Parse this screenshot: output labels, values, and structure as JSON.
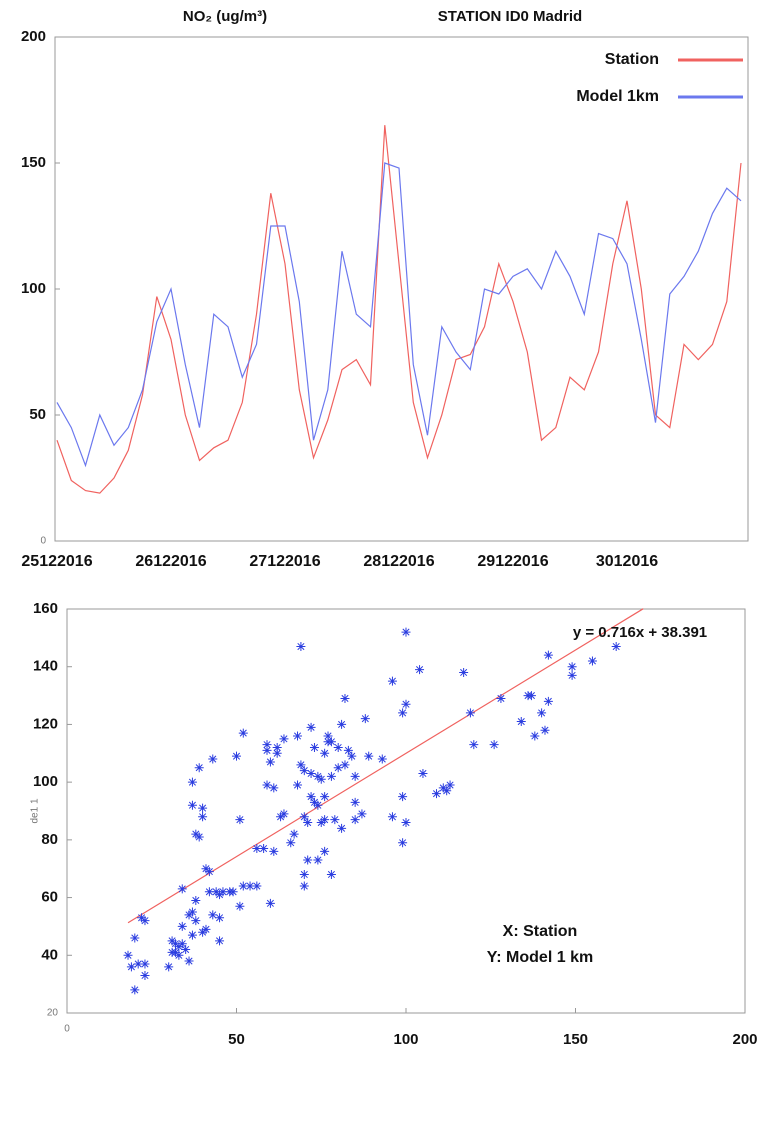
{
  "chart_data": [
    {
      "type": "line",
      "title": "NO₂  (ug/m³)",
      "subtitle": "STATION ID0 Madrid",
      "categories": [
        "25122016",
        null,
        null,
        null,
        null,
        null,
        null,
        null,
        "26122016",
        null,
        null,
        null,
        null,
        null,
        null,
        null,
        "27122016",
        null,
        null,
        null,
        null,
        null,
        null,
        null,
        "28122016",
        null,
        null,
        null,
        null,
        null,
        null,
        null,
        "29122016",
        null,
        null,
        null,
        null,
        null,
        null,
        null,
        "3012016",
        null,
        null,
        null,
        null,
        null,
        null,
        null,
        null
      ],
      "series": [
        {
          "name": "Station",
          "color": "#f0625f",
          "values": [
            40,
            24,
            20,
            19,
            25,
            36,
            58,
            97,
            80,
            50,
            32,
            37,
            40,
            55,
            90,
            138,
            110,
            60,
            33,
            48,
            68,
            72,
            62,
            165,
            110,
            55,
            33,
            50,
            72,
            74,
            85,
            110,
            95,
            75,
            40,
            45,
            65,
            60,
            75,
            110,
            135,
            100,
            50,
            45,
            78,
            72,
            78,
            95,
            150
          ]
        },
        {
          "name": "Model 1km",
          "color": "#6b78ee",
          "values": [
            55,
            45,
            30,
            50,
            38,
            45,
            60,
            87,
            100,
            70,
            45,
            90,
            85,
            65,
            78,
            125,
            125,
            95,
            40,
            60,
            115,
            90,
            85,
            150,
            148,
            70,
            42,
            85,
            75,
            68,
            100,
            98,
            105,
            108,
            100,
            115,
            105,
            90,
            122,
            120,
            110,
            80,
            47,
            98,
            105,
            115,
            130,
            140,
            135
          ]
        }
      ],
      "ylim": [
        0,
        200
      ],
      "yticks": [
        0,
        50,
        100,
        150,
        200
      ],
      "legend": "upper right"
    },
    {
      "type": "scatter",
      "color": "#2b3de0",
      "marker": "*",
      "x": [
        18,
        19,
        20,
        20,
        21,
        22,
        23,
        23,
        23,
        30,
        31,
        31,
        32,
        32,
        33,
        33,
        34,
        34,
        34,
        35,
        36,
        36,
        37,
        37,
        38,
        38,
        37,
        37,
        38,
        39,
        39,
        40,
        40,
        40,
        41,
        41,
        42,
        42,
        43,
        43,
        44,
        45,
        45,
        45,
        46,
        48,
        49,
        50,
        51,
        51,
        52,
        52,
        54,
        56,
        56,
        58,
        59,
        59,
        59,
        60,
        60,
        61,
        61,
        62,
        62,
        63,
        64,
        64,
        66,
        67,
        68,
        68,
        69,
        69,
        70,
        70,
        70,
        70,
        71,
        71,
        72,
        72,
        72,
        73,
        73,
        74,
        74,
        74,
        75,
        75,
        76,
        76,
        76,
        76,
        77,
        77,
        78,
        78,
        78,
        79,
        80,
        80,
        81,
        81,
        82,
        82,
        83,
        84,
        85,
        85,
        85,
        87,
        88,
        89,
        93,
        96,
        96,
        99,
        99,
        99,
        100,
        100,
        100,
        104,
        105,
        109,
        111,
        112,
        113,
        117,
        119,
        120,
        126,
        128,
        134,
        136,
        137,
        138,
        140,
        141,
        142,
        142,
        149,
        149,
        155,
        162
      ],
      "values": [
        40,
        36,
        46,
        28,
        37,
        53,
        52,
        33,
        37,
        36,
        41,
        45,
        44,
        41,
        40,
        43,
        63,
        44,
        50,
        42,
        38,
        54,
        47,
        55,
        59,
        52,
        92,
        100,
        82,
        81,
        105,
        91,
        88,
        48,
        70,
        49,
        62,
        69,
        54,
        108,
        62,
        61,
        53,
        45,
        62,
        62,
        62,
        109,
        87,
        57,
        117,
        64,
        64,
        64,
        77,
        77,
        113,
        111,
        99,
        58,
        107,
        98,
        76,
        112,
        110,
        88,
        89,
        115,
        79,
        82,
        99,
        116,
        106,
        147,
        104,
        64,
        68,
        88,
        73,
        86,
        95,
        119,
        103,
        93,
        112,
        92,
        102,
        73,
        101,
        86,
        110,
        76,
        95,
        87,
        116,
        114,
        68,
        102,
        114,
        87,
        112,
        105,
        120,
        84,
        129,
        106,
        111,
        109,
        102,
        87,
        93,
        89,
        122,
        109,
        108,
        135,
        88,
        79,
        95,
        124,
        152,
        86,
        127,
        139,
        103,
        96,
        98,
        97,
        99,
        138,
        124,
        113,
        113,
        129,
        121,
        130,
        130,
        116,
        124,
        118,
        128,
        144,
        137,
        140,
        142,
        147
      ],
      "xlim": [
        0,
        200
      ],
      "xticks": [
        0,
        50,
        100,
        150,
        200
      ],
      "ylim": [
        20,
        160
      ],
      "yticks": [
        20,
        40,
        60,
        80,
        100,
        120,
        140,
        160
      ],
      "ylabel": "de1 1",
      "trendline": {
        "label": "y = 0.716x + 38.391",
        "slope": 0.716,
        "intercept": 38.391,
        "x": [
          18,
          170
        ],
        "color": "#f0625f"
      },
      "annotations": [
        "X:  Station",
        "Y: Model 1 km"
      ]
    }
  ]
}
